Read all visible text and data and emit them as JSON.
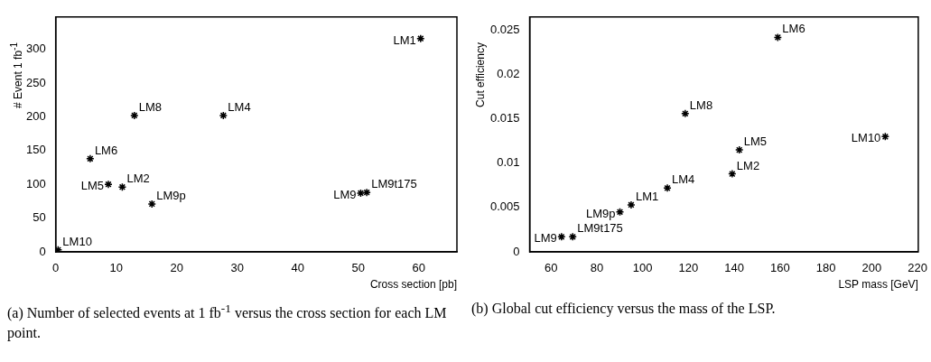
{
  "chart_data": [
    {
      "type": "scatter",
      "xlabel": "Cross section [pb]",
      "ylabel": "# Event  1 fb$^{-1}$",
      "xlim": [
        0,
        66.3
      ],
      "xticks": [
        0,
        10,
        20,
        30,
        40,
        50,
        60
      ],
      "ylim": [
        0,
        348
      ],
      "yticks": [
        0,
        50,
        100,
        150,
        200,
        250,
        300
      ],
      "grid": false,
      "legend": false,
      "marker": "cross",
      "series": [
        {
          "color": "#000000",
          "x": [
            60.3,
            13.0,
            27.7,
            5.7,
            8.7,
            11.0,
            15.9,
            50.4,
            51.4,
            0.4
          ],
          "values": [
            316,
            202,
            202,
            138,
            100,
            96,
            71,
            87,
            88,
            3
          ]
        }
      ],
      "annotations": [
        {
          "text": "LM1",
          "x": 60.3,
          "y": 316
        },
        {
          "text": "LM8",
          "x": 13.0,
          "y": 202
        },
        {
          "text": "LM4",
          "x": 27.7,
          "y": 202
        },
        {
          "text": "LM6",
          "x": 5.7,
          "y": 138
        },
        {
          "text": "LM5",
          "x": 8.7,
          "y": 100
        },
        {
          "text": "LM2",
          "x": 11.0,
          "y": 96
        },
        {
          "text": "LM9p",
          "x": 15.9,
          "y": 71
        },
        {
          "text": "LM9",
          "x": 50.4,
          "y": 87
        },
        {
          "text": "LM9t175",
          "x": 51.4,
          "y": 88
        },
        {
          "text": "LM10",
          "x": 0.4,
          "y": 3
        },
        "(a) Number of selected events at 1 fb$^{-1}$ versus the cross section for each LM point."
      ]
    },
    {
      "type": "scatter",
      "xlabel": "LSP mass [GeV]",
      "ylabel": "Cut efficiency",
      "xlim": [
        50.7,
        220.3
      ],
      "xticks": [
        60,
        80,
        100,
        120,
        140,
        160,
        180,
        200,
        220
      ],
      "ylim": [
        0,
        0.0265
      ],
      "yticks": [
        0,
        0.005,
        0.01,
        0.015,
        0.02,
        0.025
      ],
      "grid": false,
      "legend": false,
      "marker": "cross",
      "series": [
        {
          "color": "#000000",
          "x": [
            159.0,
            118.6,
            142.2,
            205.9,
            139.1,
            110.8,
            95.0,
            90.1,
            64.6,
            69.5
          ],
          "values": [
            0.0242,
            0.0156,
            0.0115,
            0.013,
            0.0088,
            0.0072,
            0.0053,
            0.0045,
            0.0017,
            0.0017
          ]
        }
      ],
      "annotations": [
        {
          "text": "LM6",
          "x": 159.0,
          "y": 0.0242
        },
        {
          "text": "LM8",
          "x": 118.6,
          "y": 0.0156
        },
        {
          "text": "LM5",
          "x": 142.2,
          "y": 0.0115
        },
        {
          "text": "LM10",
          "x": 205.9,
          "y": 0.013
        },
        {
          "text": "LM2",
          "x": 139.1,
          "y": 0.0088
        },
        {
          "text": "LM4",
          "x": 110.8,
          "y": 0.0072
        },
        {
          "text": "LM1",
          "x": 95.0,
          "y": 0.0053
        },
        {
          "text": "LM9p",
          "x": 90.1,
          "y": 0.0045
        },
        {
          "text": "LM9",
          "x": 64.6,
          "y": 0.0017
        },
        {
          "text": "LM9t175",
          "x": 69.5,
          "y": 0.0017
        },
        "(b) Global cut efficiency versus the mass of the LSP."
      ]
    }
  ]
}
